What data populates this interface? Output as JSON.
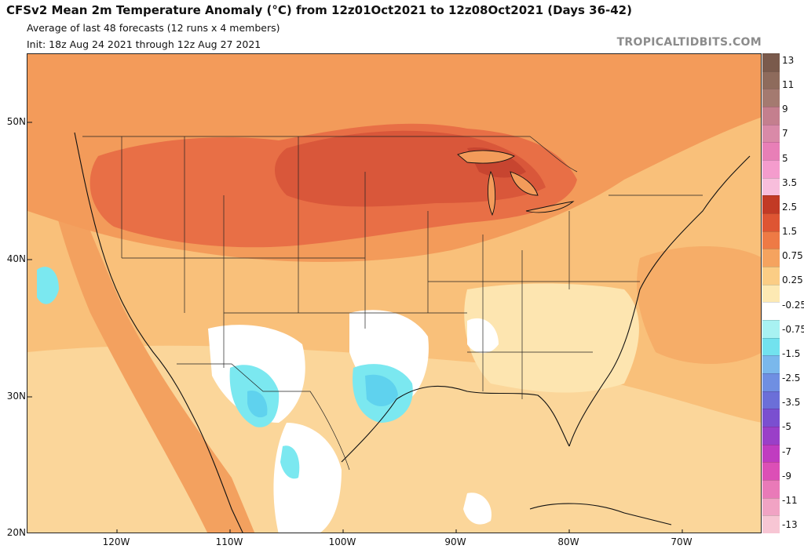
{
  "header": {
    "title": "CFSv2 Mean 2m Temperature Anomaly (°C) from 12z01Oct2021 to 12z08Oct2021 (Days 36-42)",
    "subtitle": "Average of last 48 forecasts (12 runs x 4 members)",
    "init": "Init: 18z Aug 24 2021 through 12z Aug 27 2021",
    "watermark": "TROPICALTIDBITS.COM"
  },
  "axes": {
    "latitude_labels": [
      "50N",
      "40N",
      "30N",
      "20N"
    ],
    "longitude_labels": [
      "120W",
      "110W",
      "100W",
      "90W",
      "80W",
      "70W"
    ]
  },
  "colorbar": {
    "labels": [
      "13",
      "11",
      "9",
      "7",
      "5",
      "3.5",
      "2.5",
      "1.5",
      "0.75",
      "0.25",
      "-0.25",
      "-0.75",
      "-1.5",
      "-2.5",
      "-3.5",
      "-5",
      "-7",
      "-9",
      "-11",
      "-13"
    ],
    "colors": [
      "#7a5a4c",
      "#8e6b5c",
      "#a47a70",
      "#c47f8e",
      "#d98aa8",
      "#e87fb7",
      "#f49ccd",
      "#f8bedc",
      "#c23a25",
      "#de5533",
      "#ee7a45",
      "#f5a35f",
      "#fbcd85",
      "#fde9b3",
      "#ffffff",
      "#a8f2f2",
      "#72e2ee",
      "#7ab8ec",
      "#6f8fe2",
      "#6b6fd8",
      "#7a4fd0",
      "#9a3fc8",
      "#c03cc0",
      "#dc4fb6",
      "#e97ab8",
      "#f1a3c4",
      "#f7c6d4"
    ]
  },
  "map": {
    "region": "Continental United States, southern Canada, Mexico, Caribbean",
    "land_color": "#fad28e",
    "warm_core_color": "#dc5535",
    "cool_color": "#7be8f0",
    "neutral_color": "#ffffff"
  }
}
